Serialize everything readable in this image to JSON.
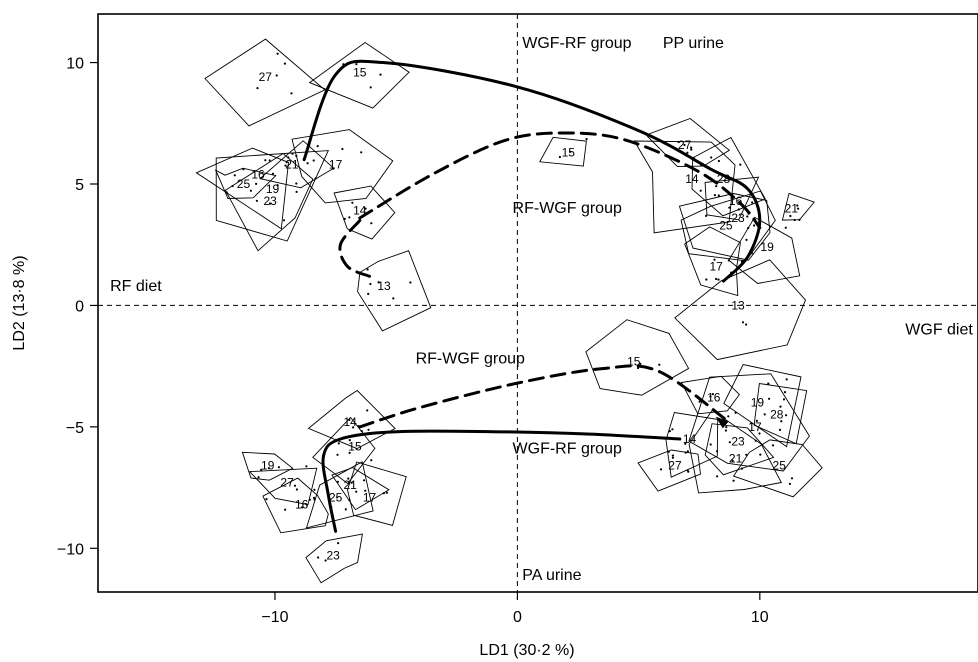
{
  "chart_data": {
    "type": "scatter",
    "xlabel": "LD1 (30·2 %)",
    "ylabel": "LD2 (13·8 %)",
    "xlim": [
      -17.3,
      19
    ],
    "ylim": [
      -11.8,
      12
    ],
    "xticks": [
      -10,
      0,
      10
    ],
    "yticks": [
      -10,
      -5,
      0,
      5,
      10
    ],
    "grid": false,
    "annotations": [
      {
        "text": "WGF-RF group",
        "x": 0.2,
        "y": 10.6
      },
      {
        "text": "PP urine",
        "x": 6.0,
        "y": 10.6
      },
      {
        "text": "RF-WGF group",
        "x": -0.2,
        "y": 3.8
      },
      {
        "text": "RF diet",
        "x": -16.8,
        "y": 0.6
      },
      {
        "text": "WGF diet",
        "x": 16.0,
        "y": -1.2
      },
      {
        "text": "RF-WGF group",
        "x": -4.2,
        "y": -2.4
      },
      {
        "text": "WGF-RF group",
        "x": -0.2,
        "y": -6.1
      },
      {
        "text": "PA urine",
        "x": 0.2,
        "y": -11.3
      }
    ],
    "series": [
      {
        "line": "solid",
        "x": [
          -8.8,
          -7.5,
          -5.5,
          0,
          5,
          8,
          9.5,
          10,
          9.5,
          8.5
        ],
        "y": [
          6.0,
          9.5,
          10.0,
          9.0,
          7.2,
          5.6,
          4.8,
          3.5,
          2.0,
          1.0
        ]
      },
      {
        "line": "dashed",
        "x": [
          -6.5,
          -3.5,
          -0.5,
          2,
          4.5,
          7.5,
          9.2,
          10
        ],
        "y": [
          3.6,
          5.4,
          6.8,
          7.1,
          6.8,
          5.5,
          4.2,
          3.2
        ]
      },
      {
        "line": "dashed",
        "x": [
          -6.5,
          -7.3,
          -7.0,
          -6.1
        ],
        "y": [
          3.5,
          2.5,
          1.6,
          1.2
        ]
      },
      {
        "line": "dashed",
        "x": [
          -6.5,
          -4.0,
          0,
          3.5,
          5.8,
          8.6
        ],
        "y": [
          -5.0,
          -4.2,
          -3.2,
          -2.6,
          -2.7,
          -4.7
        ]
      },
      {
        "line": "solid",
        "x": [
          6.7,
          3,
          -1,
          -5,
          -7.3,
          -8,
          -7.8,
          -7.5
        ],
        "y": [
          -5.5,
          -5.3,
          -5.2,
          -5.2,
          -5.5,
          -6.2,
          -7.8,
          -9.3
        ]
      }
    ],
    "labels": [
      {
        "text": "27",
        "x": -10.4,
        "y": 9.4
      },
      {
        "text": "15",
        "x": -6.5,
        "y": 9.6
      },
      {
        "text": "21",
        "x": -9.3,
        "y": 5.8
      },
      {
        "text": "17",
        "x": -7.5,
        "y": 5.8
      },
      {
        "text": "16",
        "x": -10.7,
        "y": 5.4
      },
      {
        "text": "25",
        "x": -11.3,
        "y": 5.0
      },
      {
        "text": "19",
        "x": -10.1,
        "y": 4.8
      },
      {
        "text": "23",
        "x": -10.2,
        "y": 4.3
      },
      {
        "text": "14",
        "x": -6.5,
        "y": 3.9
      },
      {
        "text": "13",
        "x": -5.5,
        "y": 0.8
      },
      {
        "text": "15",
        "x": 2.1,
        "y": 6.3
      },
      {
        "text": "27",
        "x": 6.9,
        "y": 6.6
      },
      {
        "text": "14",
        "x": 7.2,
        "y": 5.2
      },
      {
        "text": "28",
        "x": 8.5,
        "y": 5.2
      },
      {
        "text": "16",
        "x": 9.0,
        "y": 4.3
      },
      {
        "text": "23",
        "x": 9.1,
        "y": 3.6
      },
      {
        "text": "25",
        "x": 8.6,
        "y": 3.3
      },
      {
        "text": "21",
        "x": 11.3,
        "y": 4.0
      },
      {
        "text": "19",
        "x": 10.3,
        "y": 2.4
      },
      {
        "text": "17",
        "x": 8.2,
        "y": 1.6
      },
      {
        "text": "13",
        "x": 9.1,
        "y": 0.0
      },
      {
        "text": "15",
        "x": 4.8,
        "y": -2.3
      },
      {
        "text": "16",
        "x": 8.1,
        "y": -3.8
      },
      {
        "text": "19",
        "x": 9.9,
        "y": -4.0
      },
      {
        "text": "28",
        "x": 10.7,
        "y": -4.5
      },
      {
        "text": "17",
        "x": 9.8,
        "y": -5.0
      },
      {
        "text": "14",
        "x": 7.1,
        "y": -5.5
      },
      {
        "text": "23",
        "x": 9.1,
        "y": -5.6
      },
      {
        "text": "21",
        "x": 9.0,
        "y": -6.3
      },
      {
        "text": "27",
        "x": 6.5,
        "y": -6.6
      },
      {
        "text": "25",
        "x": 10.8,
        "y": -6.6
      },
      {
        "text": "14",
        "x": -6.9,
        "y": -4.8
      },
      {
        "text": "15",
        "x": -6.7,
        "y": -5.8
      },
      {
        "text": "19",
        "x": -10.3,
        "y": -6.6
      },
      {
        "text": "27",
        "x": -9.5,
        "y": -7.3
      },
      {
        "text": "21",
        "x": -6.9,
        "y": -7.4
      },
      {
        "text": "25",
        "x": -7.5,
        "y": -7.9
      },
      {
        "text": "17",
        "x": -6.1,
        "y": -7.9
      },
      {
        "text": "16",
        "x": -8.9,
        "y": -8.2
      },
      {
        "text": "23",
        "x": -7.6,
        "y": -10.3
      }
    ]
  }
}
